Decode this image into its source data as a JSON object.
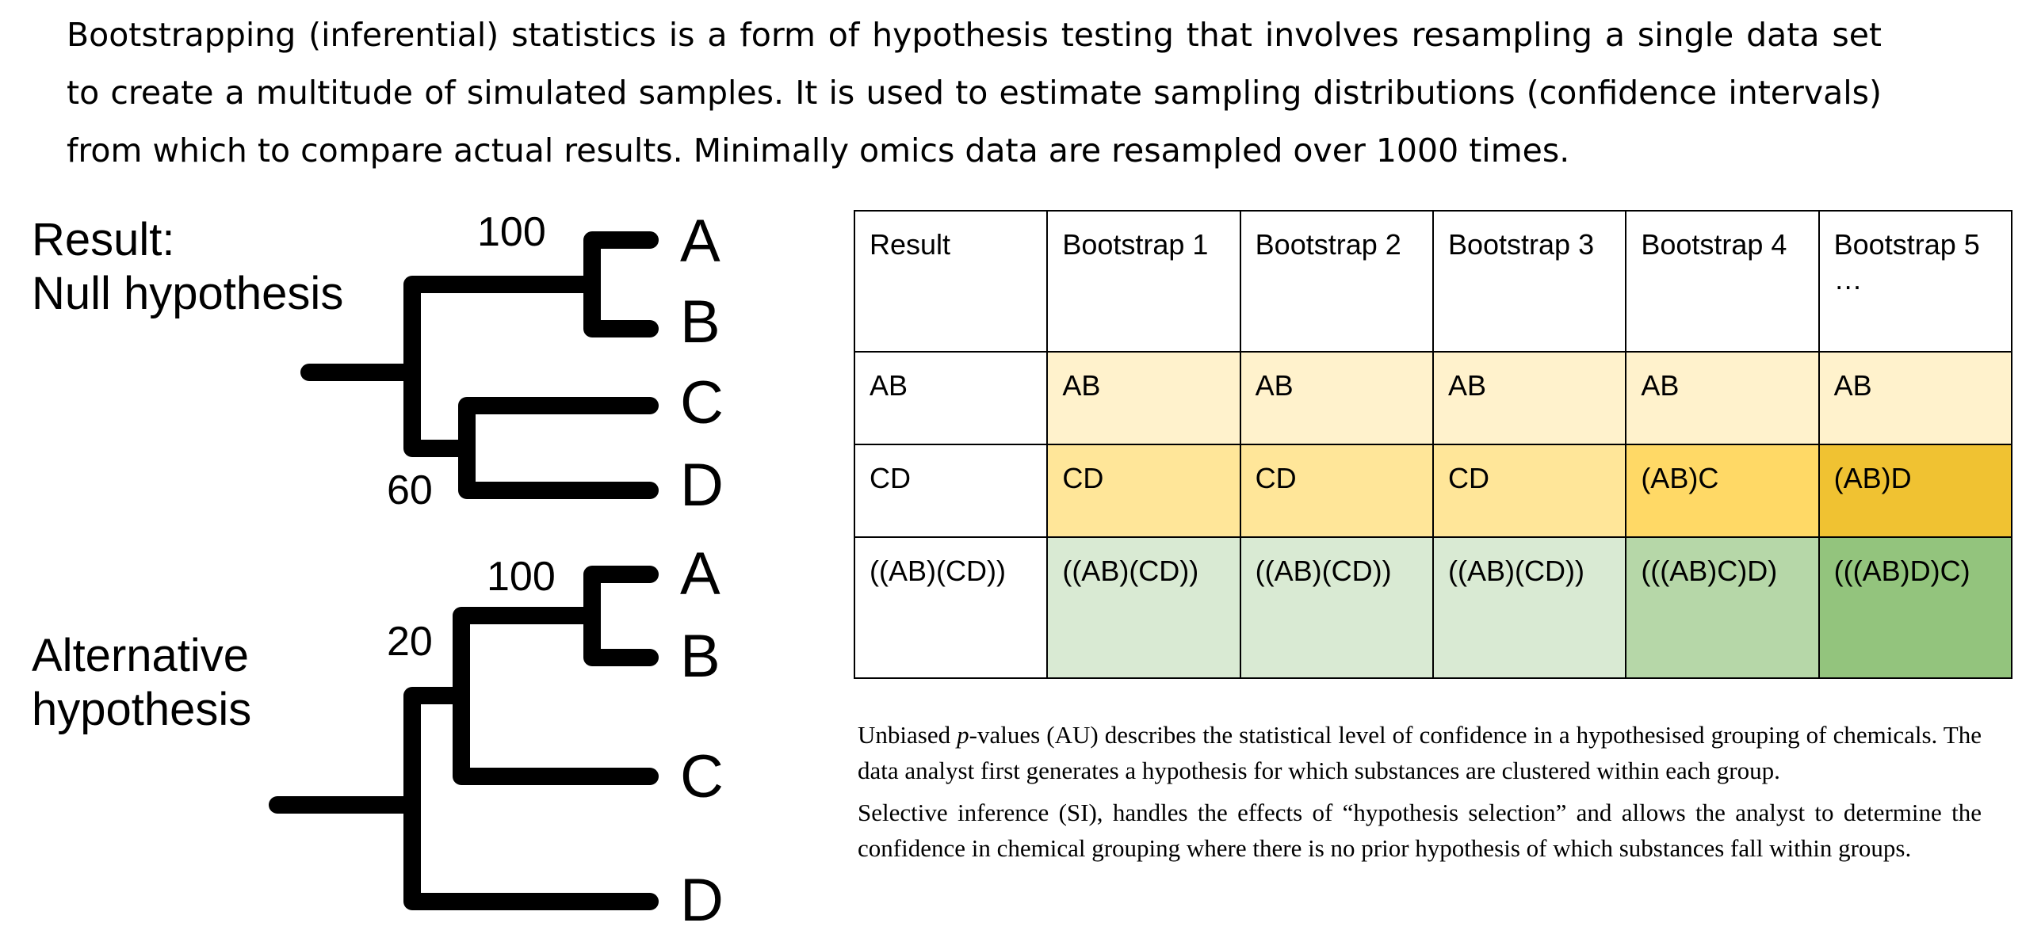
{
  "intro_text": "Bootstrapping (inferential) statistics is a form of hypothesis testing that involves resampling a single data set to create a multitude of simulated samples. It is used to estimate sampling distributions (confidence intervals) from which to compare actual results. Minimally omics data are resampled over 1000 times.",
  "trees": {
    "null": {
      "title_line1": "Result:",
      "title_line2": "Null hypothesis",
      "support_ab": "100",
      "support_cd": "60",
      "leaves": [
        "A",
        "B",
        "C",
        "D"
      ]
    },
    "alt": {
      "title_line1": "Alternative",
      "title_line2": "hypothesis",
      "support_ab": "100",
      "support_abc": "20",
      "leaves": [
        "A",
        "B",
        "C",
        "D"
      ]
    }
  },
  "table": {
    "headers": [
      "Result",
      "Bootstrap 1",
      "Bootstrap 2",
      "Bootstrap 3",
      "Bootstrap 4",
      "Bootstrap 5",
      "…"
    ],
    "rows": [
      [
        "AB",
        "AB",
        "AB",
        "AB",
        "AB",
        "AB"
      ],
      [
        "CD",
        "CD",
        "CD",
        "CD",
        "(AB)C",
        "(AB)D"
      ],
      [
        "((AB)(CD))",
        "((AB)(CD))",
        "((AB)(CD))",
        "((AB)(CD))",
        "(((AB)C)D)",
        "(((AB)D)C)"
      ]
    ],
    "colors": {
      "row1": [
        "#ffffff",
        "#fff2cc",
        "#fff2cc",
        "#fff2cc",
        "#fff2cc",
        "#fff2cc"
      ],
      "row2": [
        "#ffffff",
        "#ffe699",
        "#ffe699",
        "#ffe699",
        "#ffd966",
        "#f0c232"
      ],
      "row3": [
        "#ffffff",
        "#d9ead3",
        "#d9ead3",
        "#d9ead3",
        "#b6d7a8",
        "#93c47d"
      ]
    }
  },
  "notes": {
    "p1_before": "Unbiased ",
    "p1_italic": "p",
    "p1_after": "-values (AU) describes the statistical level of confidence in a hypothesised grouping of chemicals. The data analyst first generates a hypothesis for which substances are clustered within each group.",
    "p2": "Selective inference (SI), handles the effects of “hypothesis selection” and allows the analyst to determine the confidence in chemical grouping where there is no prior hypothesis of which substances fall within groups."
  }
}
